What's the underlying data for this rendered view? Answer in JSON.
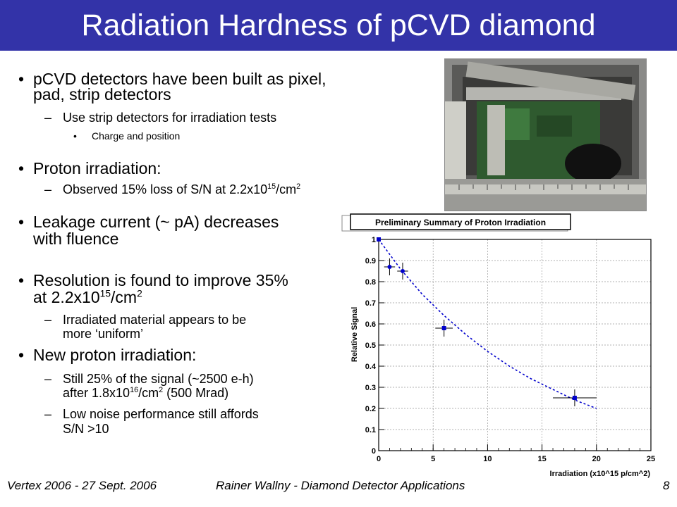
{
  "slide": {
    "title": "Radiation Hardness of pCVD diamond",
    "bullets": {
      "b1_line1": "pCVD detectors have been built as pixel,",
      "b1_line2": "pad, strip detectors",
      "b1_sub1": "Use strip detectors for irradiation tests",
      "b1_subsub1": "Charge and position",
      "b2": "Proton irradiation:",
      "b2_sub1_pre": "Observed 15% loss of S/N at 2.2x10",
      "b2_sub1_exp": "15",
      "b2_sub1_unit": "/cm",
      "b2_sub1_unit_exp": "2",
      "b3_line1": "Leakage current  (~ pA) decreases",
      "b3_line2": "with fluence",
      "b4_line1": "Resolution is found to improve 35%",
      "b4_line2_pre": "at 2.2x10",
      "b4_line2_exp": "15",
      "b4_line2_unit": "/cm",
      "b4_line2_unit_exp": "2",
      "b4_sub1_line1": "Irradiated material appears to be",
      "b4_sub1_line2": "more ‘uniform’",
      "b5": "New proton irradiation:",
      "b5_sub1_line1": "Still 25% of  the signal (~2500 e-h)",
      "b5_sub1_line2_pre": "after 1.8x10",
      "b5_sub1_line2_exp": "16",
      "b5_sub1_line2_unit": "/cm",
      "b5_sub1_line2_unit_exp": "2",
      "b5_sub1_line2_post": "  (500 Mrad)",
      "b5_sub2_line1": "Low noise performance still affords",
      "b5_sub2_line2": "S/N >10"
    },
    "bullet_chars": {
      "main": "•",
      "sub": "–",
      "subsub": "•"
    },
    "footer": {
      "left": "Vertex 2006 - 27 Sept. 2006",
      "center": "Rainer Wallny - Diamond Detector Applications",
      "page": "8"
    }
  },
  "photo": {
    "icon": "detector-photo-icon"
  },
  "colors": {
    "title_bar": "#3333a8",
    "marker": "#0000cc",
    "fit_line": "#0000cc"
  },
  "chart_data": {
    "type": "scatter",
    "title": "Preliminary Summary of Proton Irradiation",
    "xlabel": "Irradiation (x10^15 p/cm^2)",
    "ylabel": "Relative Signal",
    "xlim": [
      0,
      25
    ],
    "ylim": [
      0,
      1
    ],
    "xticks": [
      "0",
      "5",
      "10",
      "15",
      "20",
      "25"
    ],
    "yticks": [
      "0",
      "0.1",
      "0.2",
      "0.3",
      "0.4",
      "0.5",
      "0.6",
      "0.7",
      "0.8",
      "0.9",
      "1"
    ],
    "grid": true,
    "points": [
      {
        "marker": "square",
        "x": 0,
        "y": 1.0,
        "xerr": 0,
        "yerr": 0
      },
      {
        "marker": "circle",
        "x": 1.0,
        "y": 0.87,
        "xerr": 0.5,
        "yerr": 0.04
      },
      {
        "marker": "circle",
        "x": 2.2,
        "y": 0.85,
        "xerr": 0.5,
        "yerr": 0.04
      },
      {
        "marker": "square",
        "x": 6.0,
        "y": 0.58,
        "xerr": 0.8,
        "yerr": 0.04
      },
      {
        "marker": "square",
        "x": 18.0,
        "y": 0.25,
        "xerr": 2.0,
        "yerr": 0.04
      }
    ],
    "fit": {
      "style": "dashed",
      "x": [
        0,
        2,
        4,
        6,
        8,
        10,
        12,
        14,
        16,
        18,
        20
      ],
      "y": [
        1.0,
        0.86,
        0.74,
        0.64,
        0.55,
        0.47,
        0.4,
        0.34,
        0.29,
        0.24,
        0.2
      ]
    }
  }
}
